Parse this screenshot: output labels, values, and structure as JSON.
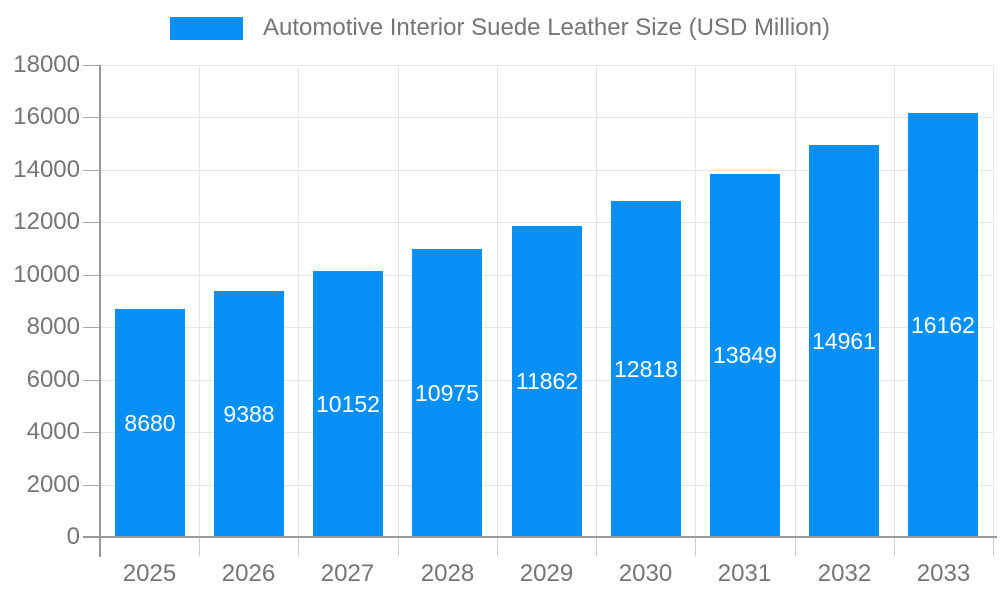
{
  "legend": {
    "label": "Automotive Interior Suede Leather Size (USD Million)",
    "swatch_color": "#0590F8"
  },
  "chart_data": {
    "type": "bar",
    "title": "Automotive Interior Suede Leather Size (USD Million)",
    "categories": [
      "2025",
      "2026",
      "2027",
      "2028",
      "2029",
      "2030",
      "2031",
      "2032",
      "2033"
    ],
    "series": [
      {
        "name": "Automotive Interior Suede Leather Size (USD Million)",
        "values": [
          8680,
          9388,
          10152,
          10975,
          11862,
          12818,
          13849,
          14961,
          16162
        ],
        "color": "#0590F8"
      }
    ],
    "value_label_color": "#FFFFFF",
    "value_label_position": "inside-center",
    "xlabel": "",
    "ylabel": "",
    "ylim": [
      0,
      18000
    ],
    "yticks": [
      0,
      2000,
      4000,
      6000,
      8000,
      10000,
      12000,
      14000,
      16000,
      18000
    ],
    "grid": true,
    "legend_position": "top",
    "axis_color": "#999999",
    "gridline_color": "#E6E6E6",
    "tick_label_color": "#757575"
  }
}
